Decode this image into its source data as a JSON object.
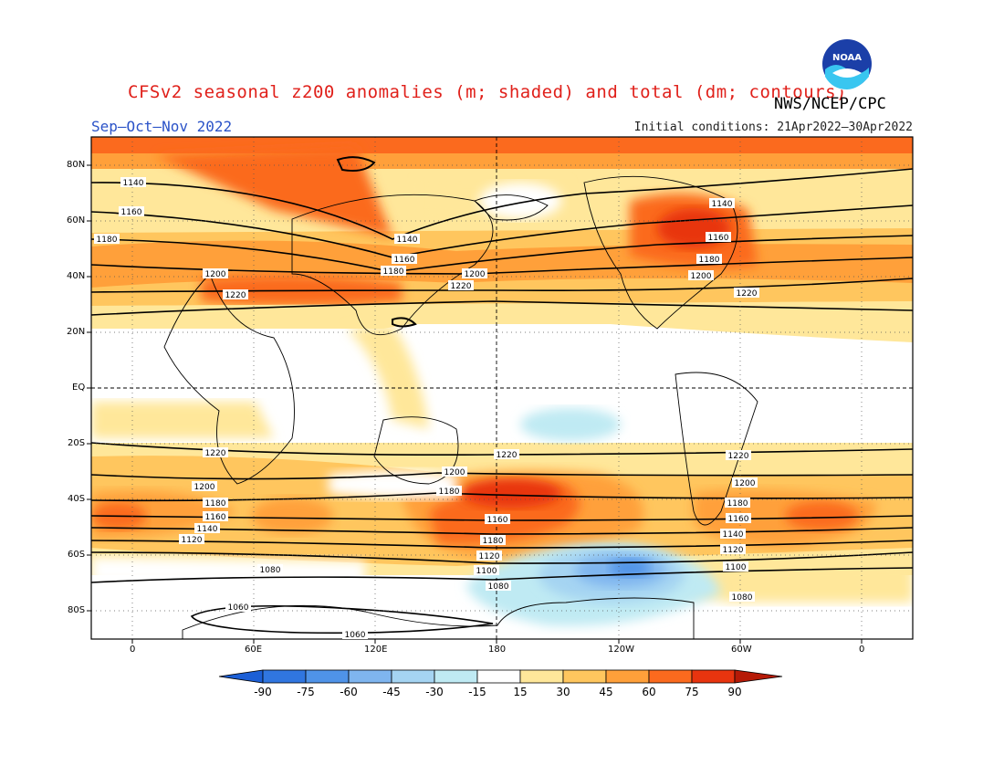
{
  "header": {
    "title": "CFSv2 seasonal z200 anomalies (m; shaded) and total (dm; contours)",
    "agency": "NWS/NCEP/CPC",
    "season": "Sep–Oct–Nov 2022",
    "initial_conditions": "Initial conditions: 21Apr2022–30Apr2022",
    "logo_text": "NOAA"
  },
  "axes": {
    "lat_labels": [
      "80N",
      "60N",
      "40N",
      "20N",
      "EQ",
      "20S",
      "40S",
      "60S",
      "80S"
    ],
    "lon_labels": [
      "0",
      "60E",
      "120E",
      "180",
      "120W",
      "60W",
      "0"
    ]
  },
  "colorbar": {
    "labels": [
      "-90",
      "-75",
      "-60",
      "-45",
      "-30",
      "-15",
      "15",
      "30",
      "45",
      "60",
      "75",
      "90"
    ],
    "colors": [
      "#1c5fd6",
      "#3076e0",
      "#4f93e8",
      "#7fb5ef",
      "#a5d4f2",
      "#bfeaf3",
      "#ffffff",
      "#ffe79a",
      "#ffc65e",
      "#ffa03a",
      "#fb6a1e",
      "#e8340f",
      "#b61a07"
    ]
  },
  "contour_labels": [
    "1140",
    "1160",
    "1180",
    "1200",
    "1220",
    "1140",
    "1160",
    "1180",
    "1200",
    "1220",
    "1140",
    "1160",
    "1180",
    "1200",
    "1220",
    "1220",
    "1200",
    "1180",
    "1160",
    "1140",
    "1120",
    "1080",
    "1060",
    "1220",
    "1200",
    "1180",
    "1160",
    "1180",
    "1120",
    "1100",
    "1080",
    "1060",
    "1220",
    "1200",
    "1180",
    "1160",
    "1140",
    "1120",
    "1100",
    "1080"
  ]
}
